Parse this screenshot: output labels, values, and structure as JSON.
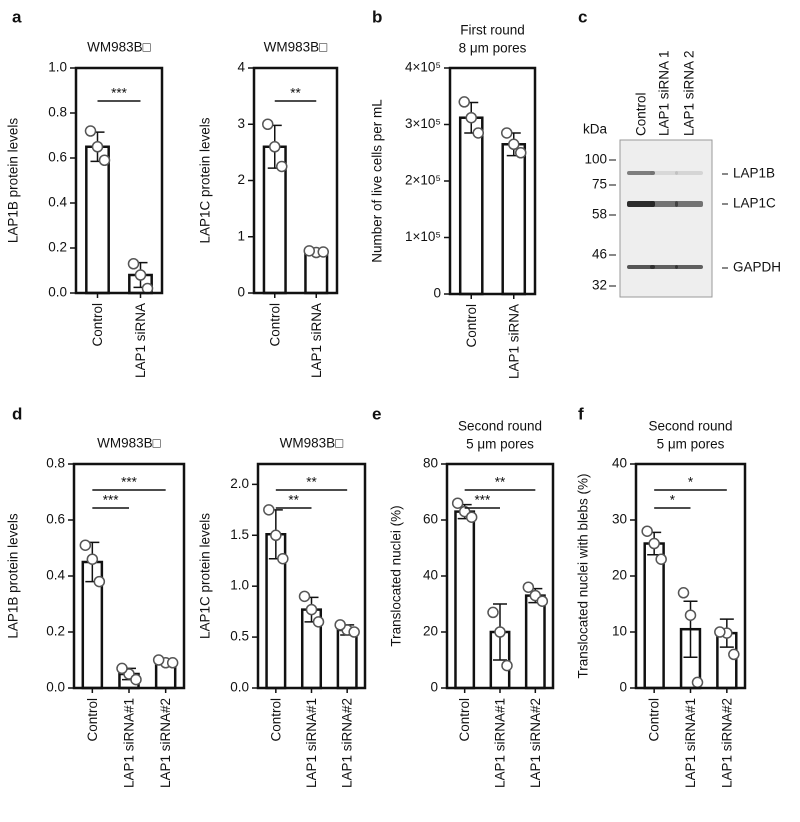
{
  "chart_data": [
    {
      "type": "bar",
      "panel": "a",
      "title": "WM983B□",
      "y_label": "LAP1B protein levels",
      "categories": [
        "Control",
        "LAP1 siRNA"
      ],
      "values": [
        0.65,
        0.08
      ],
      "errors": [
        0.065,
        0.055
      ],
      "points": [
        [
          0.65,
          0.72,
          0.59
        ],
        [
          0.08,
          0.13,
          0.02
        ]
      ],
      "annotations": [
        "***"
      ],
      "ylim": [
        0,
        1.0
      ],
      "yticks": [
        {
          "value": 0,
          "label": "0.0"
        },
        0.2,
        0.4,
        0.6,
        0.8,
        {
          "value": 1.0,
          "label": "1.0"
        }
      ]
    },
    {
      "type": "bar",
      "title": "WM983B□",
      "y_label": "LAP1C protein levels",
      "categories": [
        "Control",
        "LAP1 siRNA"
      ],
      "values": [
        2.6,
        0.72
      ],
      "errors": [
        0.38,
        0.02
      ],
      "points": [
        [
          2.6,
          3.0,
          2.25
        ],
        [
          0.72,
          0.75,
          0.73
        ]
      ],
      "annotations": [
        "**"
      ],
      "ylim": [
        0,
        4
      ],
      "yticks": [
        0,
        1,
        2,
        3,
        4
      ]
    },
    {
      "type": "bar",
      "panel": "b",
      "title": "First round",
      "subtitle": "8 μm pores",
      "y_label": "Number of live cells per mL",
      "categories": [
        "Control",
        "LAP1 siRNA"
      ],
      "values": [
        312000,
        265000
      ],
      "errors": [
        27000,
        20000
      ],
      "points": [
        [
          312000,
          340000,
          285000
        ],
        [
          265000,
          285000,
          250000
        ]
      ],
      "annotations": [],
      "ylim": [
        0,
        400000
      ],
      "yticks": [
        0,
        {
          "value": 100000,
          "label": "1×10⁵"
        },
        {
          "value": 200000,
          "label": "2×10⁵"
        },
        {
          "value": 300000,
          "label": "3×10⁵"
        },
        {
          "value": 400000,
          "label": "4×10⁵"
        }
      ]
    },
    {
      "type": "blot",
      "panel": "c",
      "unit_label": "kDa",
      "markers": [
        100,
        75,
        58,
        46,
        32
      ],
      "lanes": [
        "Control",
        "LAP1 siRNA 1",
        "LAP1 siRNA 2"
      ],
      "bands": [
        "LAP1B",
        "LAP1C",
        "GAPDH"
      ]
    },
    {
      "type": "bar",
      "panel": "d",
      "title": "WM983B□",
      "y_label": "LAP1B protein levels",
      "categories": [
        "Control",
        "LAP1 siRNA#1",
        "LAP1 siRNA#2"
      ],
      "values": [
        0.45,
        0.05,
        0.09
      ],
      "errors": [
        0.07,
        0.02,
        0.005
      ],
      "points": [
        [
          0.46,
          0.51,
          0.38
        ],
        [
          0.05,
          0.07,
          0.03
        ],
        [
          0.09,
          0.1,
          0.09
        ]
      ],
      "annotations": [
        "***",
        "***"
      ],
      "ylim": [
        0,
        0.8
      ],
      "yticks": [
        {
          "value": 0,
          "label": "0.0"
        },
        0.2,
        0.4,
        0.6,
        0.8
      ]
    },
    {
      "type": "bar",
      "title": "WM983B□",
      "y_label": "LAP1C protein levels",
      "categories": [
        "Control",
        "LAP1 siRNA#1",
        "LAP1 siRNA#2"
      ],
      "values": [
        1.51,
        0.77,
        0.57
      ],
      "errors": [
        0.24,
        0.12,
        0.05
      ],
      "points": [
        [
          1.5,
          1.75,
          1.27
        ],
        [
          0.77,
          0.9,
          0.65
        ],
        [
          0.57,
          0.62,
          0.55
        ]
      ],
      "annotations": [
        "**",
        "**"
      ],
      "ylim": [
        0,
        2.2
      ],
      "yticks": [
        {
          "value": 0,
          "label": "0.0"
        },
        0.5,
        {
          "value": 1,
          "label": "1.0"
        },
        1.5,
        {
          "value": 2,
          "label": "2.0"
        }
      ]
    },
    {
      "type": "bar",
      "panel": "e",
      "title": "Second round",
      "subtitle": "5 μm pores",
      "y_label": "Translocated nuclei (%)",
      "categories": [
        "Control",
        "LAP1 siRNA#1",
        "LAP1 siRNA#2"
      ],
      "values": [
        63,
        20,
        33
      ],
      "errors": [
        2.5,
        10,
        2.5
      ],
      "points": [
        [
          63,
          66,
          61
        ],
        [
          20,
          27,
          8
        ],
        [
          33,
          36,
          31
        ]
      ],
      "annotations": [
        "***",
        "**"
      ],
      "ylim": [
        0,
        80
      ],
      "yticks": [
        0,
        20,
        40,
        60,
        80
      ]
    },
    {
      "type": "bar",
      "panel": "f",
      "title": "Second round",
      "subtitle": "5 μm pores",
      "y_label": "Translocated nuclei with blebs (%)",
      "categories": [
        "Control",
        "LAP1 siRNA#1",
        "LAP1 siRNA#2"
      ],
      "values": [
        25.8,
        10.5,
        9.8
      ],
      "errors": [
        2,
        5,
        2.5
      ],
      "points": [
        [
          25.8,
          28,
          23
        ],
        [
          13,
          17,
          1
        ],
        [
          9.8,
          10,
          6
        ]
      ],
      "annotations": [
        "*",
        "*"
      ],
      "ylim": [
        0,
        40
      ],
      "yticks": [
        0,
        10,
        20,
        30,
        40
      ]
    }
  ]
}
